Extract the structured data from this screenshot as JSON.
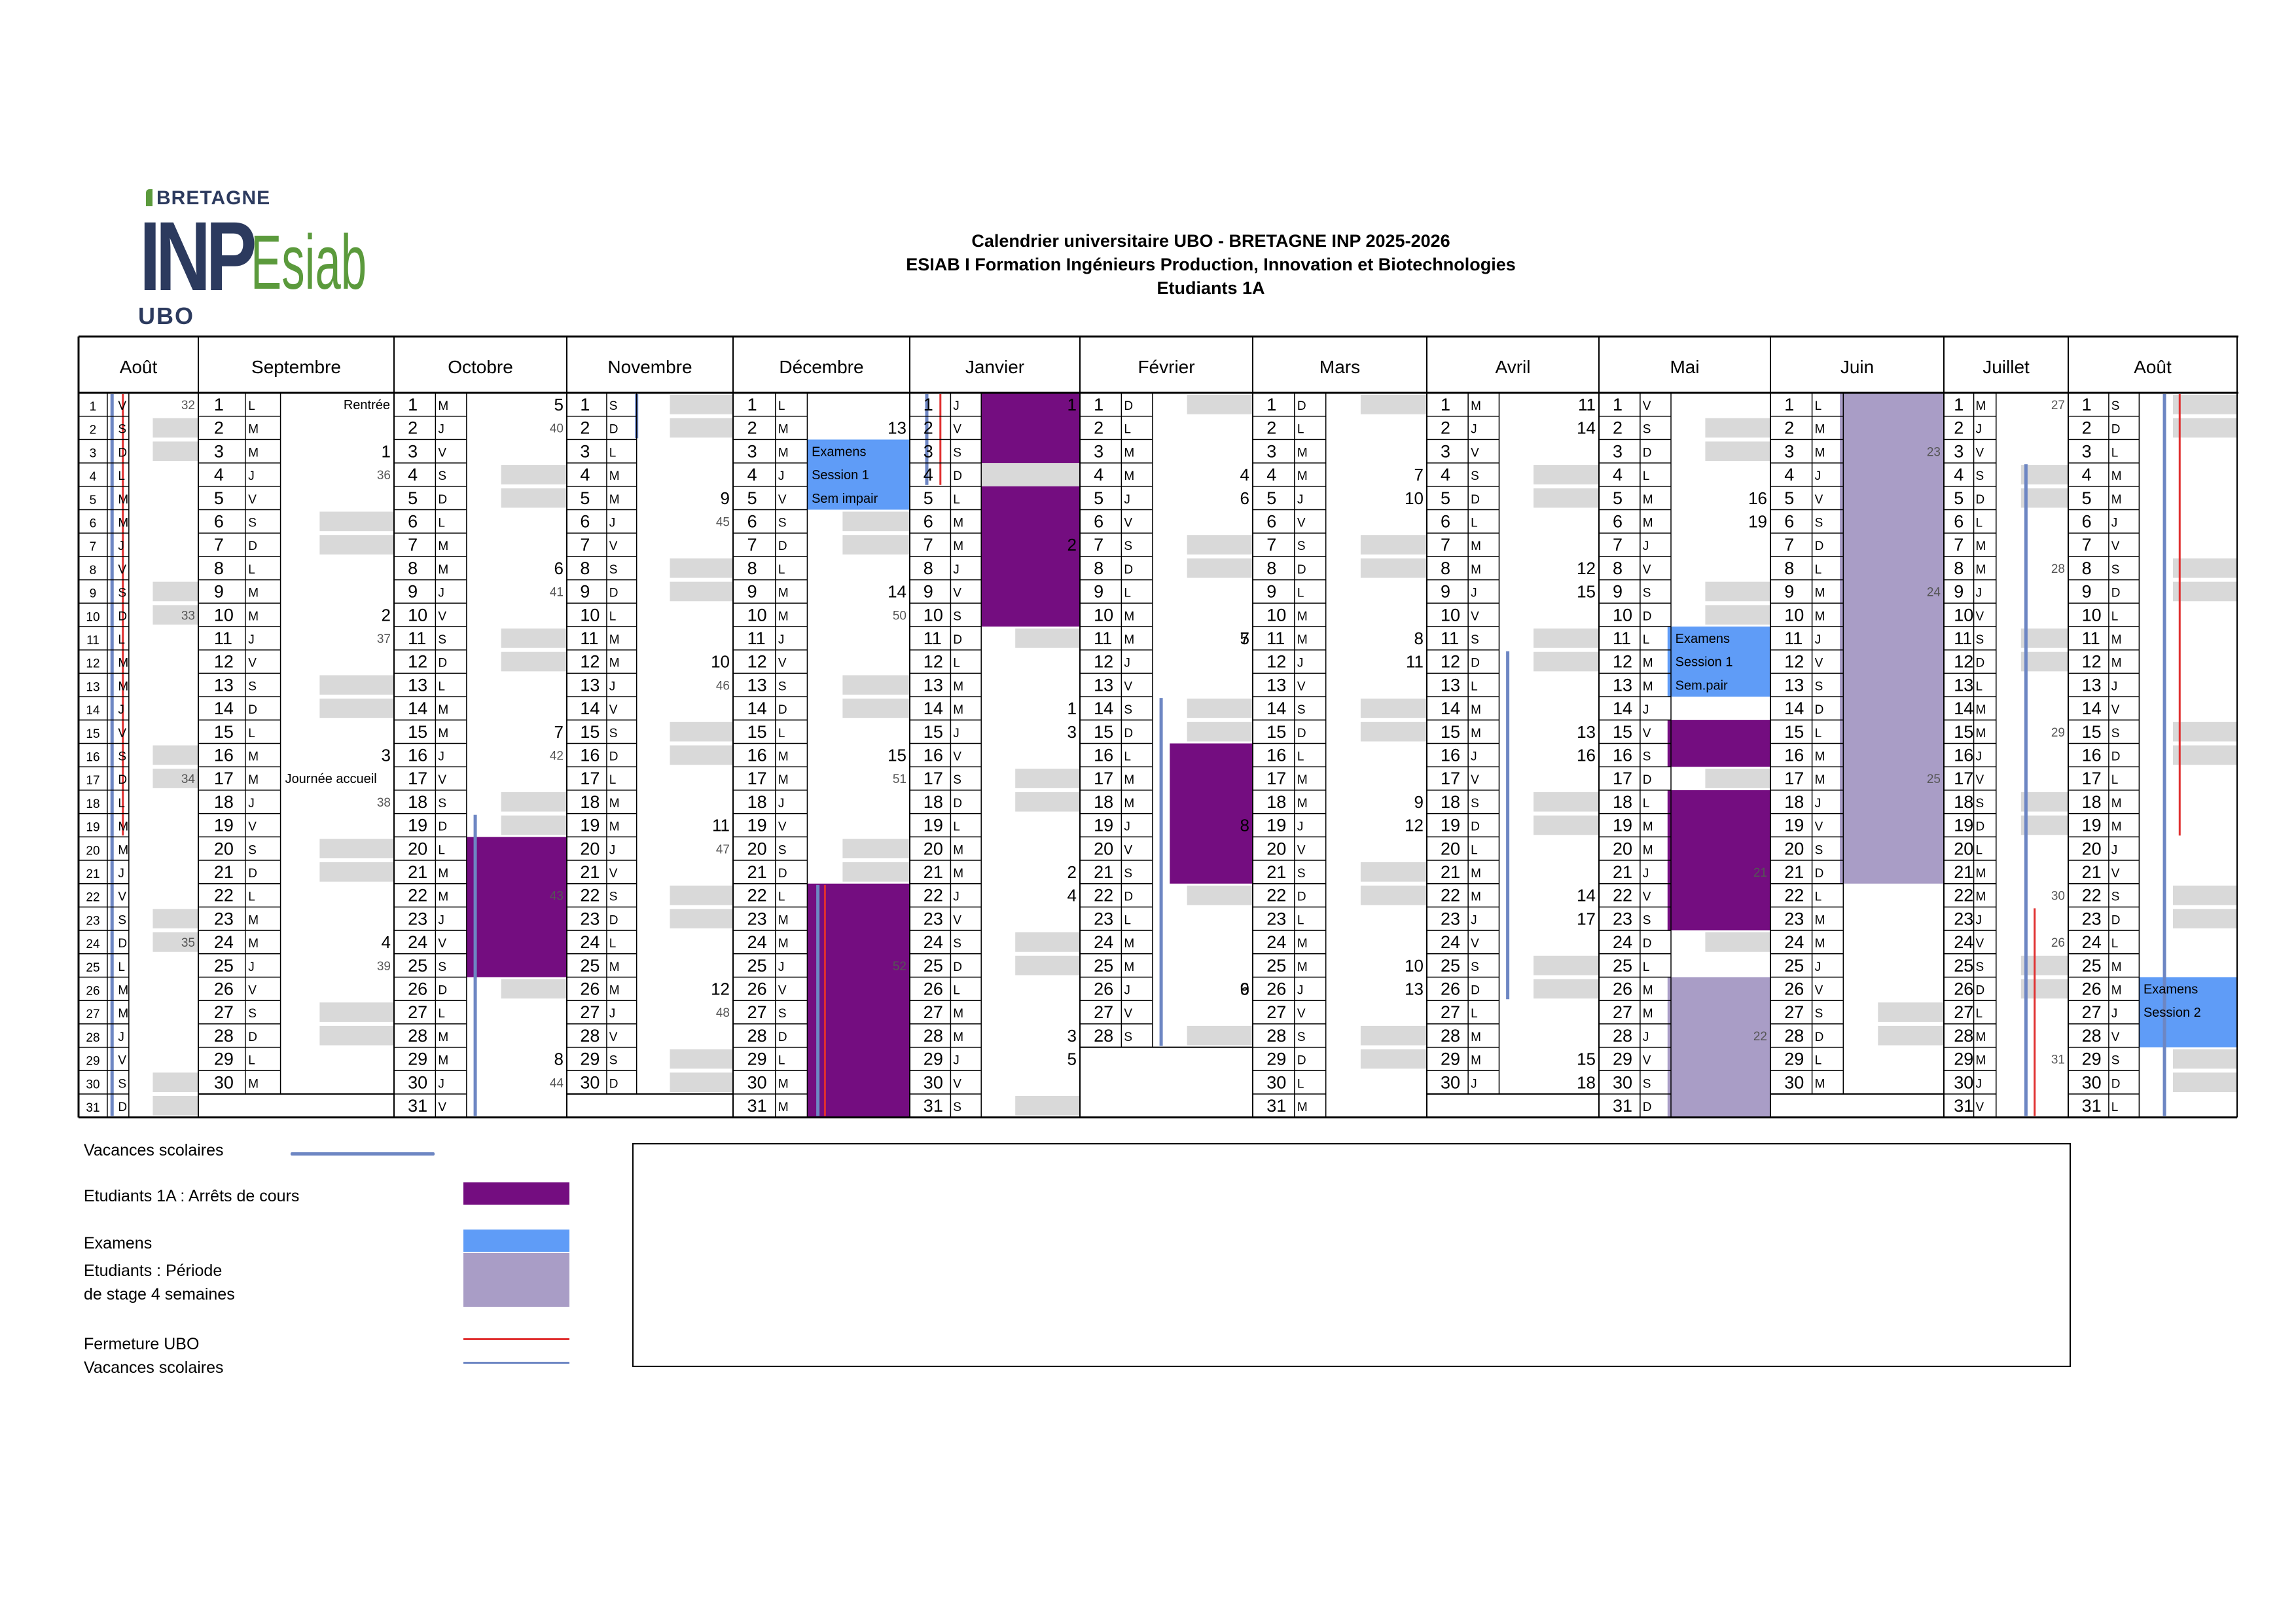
{
  "logo": {
    "bretagne": "BRETAGNE",
    "inp": "INP",
    "esiab": "Esiab",
    "ubo": "UBO"
  },
  "title": {
    "line1": "Calendrier universitaire UBO - BRETAGNE INP 2025-2026",
    "line2": "ESIAB I Formation Ingénieurs Production, Innovation et Biotechnologies",
    "line3": "Etudiants 1A"
  },
  "colors": {
    "vacances": "#6d86c3",
    "arret": "#740d80",
    "examens": "#5f9cf7",
    "stage": "#a99dc6",
    "fermeture": "#e03030",
    "weekend": "#d9d9d9"
  },
  "months": [
    {
      "name": "Août",
      "start": 5,
      "days": 31
    },
    {
      "name": "Septembre",
      "start": 1,
      "days": 30
    },
    {
      "name": "Octobre",
      "start": 3,
      "days": 31
    },
    {
      "name": "Novembre",
      "start": 6,
      "days": 30
    },
    {
      "name": "Décembre",
      "start": 1,
      "days": 31
    },
    {
      "name": "Janvier",
      "start": 4,
      "days": 31
    },
    {
      "name": "Février",
      "start": 0,
      "days": 28
    },
    {
      "name": "Mars",
      "start": 0,
      "days": 31
    },
    {
      "name": "Avril",
      "start": 3,
      "days": 30
    },
    {
      "name": "Mai",
      "start": 5,
      "days": 31
    },
    {
      "name": "Juin",
      "start": 1,
      "days": 30
    },
    {
      "name": "Juillet",
      "start": 3,
      "days": 31
    },
    {
      "name": "Août",
      "start": 6,
      "days": 31
    }
  ],
  "day_letters": [
    "D",
    "L",
    "M",
    "M",
    "J",
    "V",
    "S"
  ],
  "week_numbers": [
    [
      [
        1,
        "32"
      ],
      [
        10,
        "33"
      ],
      [
        17,
        "34"
      ],
      [
        24,
        "35"
      ]
    ],
    [
      [
        3,
        "1"
      ],
      [
        4,
        "36"
      ],
      [
        10,
        "2"
      ],
      [
        11,
        "37"
      ],
      [
        16,
        "3"
      ],
      [
        18,
        "38"
      ],
      [
        24,
        "4"
      ],
      [
        25,
        "39"
      ]
    ],
    [
      [
        1,
        "5"
      ],
      [
        2,
        "40"
      ],
      [
        8,
        "6"
      ],
      [
        9,
        "41"
      ],
      [
        15,
        "7"
      ],
      [
        16,
        "42"
      ],
      [
        22,
        "43"
      ],
      [
        29,
        "8"
      ],
      [
        30,
        "44"
      ]
    ],
    [
      [
        5,
        "9"
      ],
      [
        6,
        "45"
      ],
      [
        12,
        "10"
      ],
      [
        13,
        "46"
      ],
      [
        19,
        "11"
      ],
      [
        20,
        "47"
      ],
      [
        26,
        "12"
      ],
      [
        27,
        "48"
      ]
    ],
    [
      [
        2,
        "13"
      ],
      [
        9,
        "14"
      ],
      [
        10,
        "50"
      ],
      [
        16,
        "15"
      ],
      [
        17,
        "51"
      ],
      [
        25,
        "52"
      ]
    ],
    [
      [
        1,
        "1"
      ],
      [
        7,
        "2"
      ],
      [
        14,
        "1"
      ],
      [
        15,
        "3"
      ],
      [
        21,
        "2"
      ],
      [
        22,
        "4"
      ],
      [
        28,
        "3"
      ],
      [
        29,
        "5"
      ]
    ],
    [
      [
        4,
        "4"
      ],
      [
        5,
        "6"
      ],
      [
        11,
        "5"
      ],
      [
        11,
        "7"
      ],
      [
        19,
        "8"
      ],
      [
        26,
        "6"
      ],
      [
        26,
        "9"
      ]
    ],
    [
      [
        4,
        "7"
      ],
      [
        5,
        "10"
      ],
      [
        11,
        "8"
      ],
      [
        12,
        "11"
      ],
      [
        18,
        "9"
      ],
      [
        19,
        "12"
      ],
      [
        25,
        "10"
      ],
      [
        26,
        "13"
      ]
    ],
    [
      [
        1,
        "11"
      ],
      [
        2,
        "14"
      ],
      [
        8,
        "12"
      ],
      [
        9,
        "15"
      ],
      [
        15,
        "13"
      ],
      [
        16,
        "16"
      ],
      [
        22,
        "14"
      ],
      [
        23,
        "17"
      ],
      [
        29,
        "15"
      ],
      [
        30,
        "18"
      ]
    ],
    [
      [
        5,
        "16"
      ],
      [
        6,
        "19"
      ],
      [
        21,
        "21"
      ],
      [
        28,
        "22"
      ]
    ],
    [
      [
        3,
        "23"
      ],
      [
        9,
        "24"
      ],
      [
        17,
        "25"
      ]
    ],
    [
      [
        1,
        "27"
      ],
      [
        8,
        "28"
      ],
      [
        15,
        "29"
      ],
      [
        22,
        "30"
      ],
      [
        24,
        "26"
      ],
      [
        29,
        "31"
      ]
    ],
    []
  ],
  "annotations": [
    {
      "month": 1,
      "day": 1,
      "text": "Rentrée"
    },
    {
      "month": 1,
      "day": 17,
      "text": "Journée accueil"
    },
    {
      "month": 4,
      "day": 3,
      "text": "Examens"
    },
    {
      "month": 4,
      "day": 4,
      "text": "Session 1"
    },
    {
      "month": 4,
      "day": 5,
      "text": "Sem impair"
    },
    {
      "month": 9,
      "day": 11,
      "text": "Examens"
    },
    {
      "month": 9,
      "day": 12,
      "text": "Session 1"
    },
    {
      "month": 9,
      "day": 13,
      "text": "Sem.pair"
    },
    {
      "month": 12,
      "day": 26,
      "text": "Examens"
    },
    {
      "month": 12,
      "day": 27,
      "text": "Session 2"
    }
  ],
  "headers": {
    "months_row": "months"
  },
  "legend": {
    "vacances": "Vacances scolaires",
    "arret": "Etudiants 1A : Arrêts de cours",
    "examens": "Examens",
    "stage_line1": "Etudiants : Période",
    "stage_line2": "de stage 4 semaines",
    "fermeture": "Fermeture UBO",
    "vacances2": "Vacances scolaires"
  }
}
